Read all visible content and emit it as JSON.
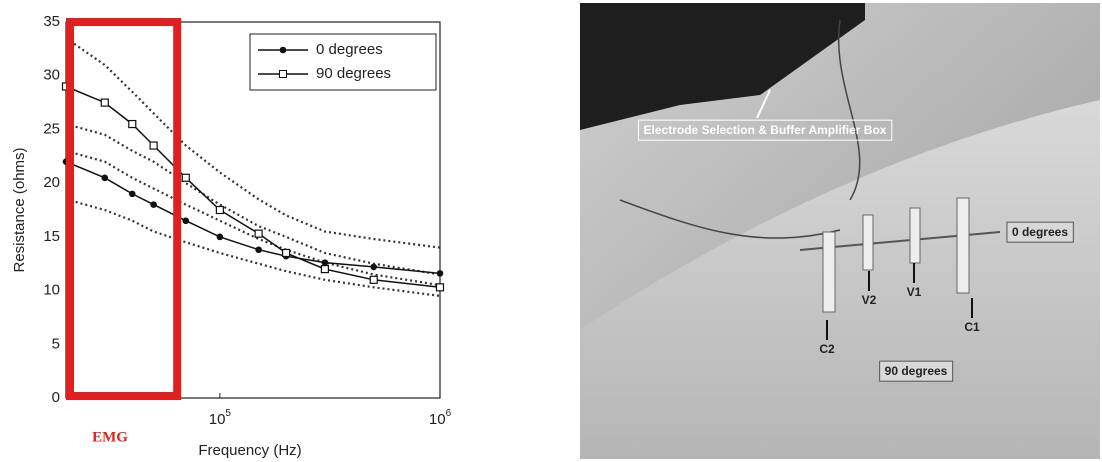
{
  "chart_data": {
    "type": "line",
    "x_label": "Frequency (Hz)",
    "y_label": "Resistance (ohms)",
    "x_log": true,
    "xlim": [
      20000,
      1000000
    ],
    "ylim": [
      0,
      35
    ],
    "xticks": [
      {
        "value": 100000,
        "label": "10",
        "sup": "5"
      },
      {
        "value": 1000000,
        "label": "10",
        "sup": "6"
      }
    ],
    "yticks": [
      0,
      5,
      10,
      15,
      20,
      25,
      30,
      35
    ],
    "x": [
      20000,
      30000,
      40000,
      50000,
      70000,
      100000,
      150000,
      200000,
      300000,
      500000,
      1000000
    ],
    "series": [
      {
        "name": "0 degrees",
        "color": "#111",
        "marker": "dot",
        "values": [
          22,
          20.5,
          19,
          18,
          16.5,
          15,
          13.8,
          13.2,
          12.6,
          12.2,
          11.6
        ]
      },
      {
        "name": "90 degrees",
        "color": "#111",
        "marker": "square",
        "values": [
          29,
          27.5,
          25.5,
          23.5,
          20.5,
          17.5,
          15.3,
          13.5,
          12,
          11,
          10.3
        ]
      }
    ],
    "bands": [
      {
        "color": "#333",
        "values": [
          33.5,
          31,
          28.5,
          26.5,
          23.5,
          21,
          18.5,
          17,
          15.5,
          14.8,
          14
        ]
      },
      {
        "color": "#333",
        "values": [
          25.5,
          24.5,
          23,
          22,
          20,
          18,
          16,
          15,
          13.5,
          12.5,
          11.5
        ]
      },
      {
        "color": "#333",
        "values": [
          23,
          22,
          20.5,
          19.5,
          18,
          16.5,
          14.8,
          13.8,
          12.6,
          11.5,
          10.5
        ]
      },
      {
        "color": "#333",
        "values": [
          18.5,
          17.5,
          16.5,
          15.5,
          14.5,
          13.5,
          12.5,
          11.8,
          11,
          10.3,
          9.5
        ]
      }
    ],
    "highlight": {
      "label": "EMG",
      "color": "#e02020",
      "range": [
        20000,
        64000
      ]
    },
    "legend": "upper right"
  },
  "photo": {
    "labels": [
      "Electrode Selection & Buffer Amplifier Box",
      "0 degrees",
      "90 degrees",
      "C2",
      "V2",
      "V1",
      "C1"
    ]
  }
}
